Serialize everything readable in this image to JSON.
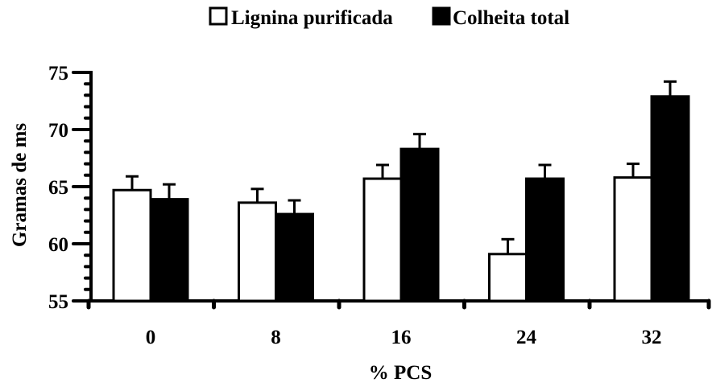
{
  "chart_data": {
    "type": "bar",
    "categories": [
      "0",
      "8",
      "16",
      "24",
      "32"
    ],
    "series": [
      {
        "name": "Lignina purificada",
        "values": [
          64.7,
          63.6,
          65.7,
          59.1,
          65.8
        ],
        "errors": [
          1.2,
          1.2,
          1.2,
          1.3,
          1.2
        ],
        "fill": "#ffffff"
      },
      {
        "name": "Colheita total",
        "values": [
          63.9,
          62.6,
          68.3,
          65.7,
          72.9
        ],
        "errors": [
          1.3,
          1.2,
          1.3,
          1.2,
          1.3
        ],
        "fill": "#000000"
      }
    ],
    "xlabel": "% PCS",
    "ylabel": "Gramas de ms",
    "ylim": [
      55,
      75
    ],
    "yticks": [
      "55",
      "60",
      "65",
      "70",
      "75"
    ],
    "grid": false,
    "legend_position": "top-center"
  }
}
